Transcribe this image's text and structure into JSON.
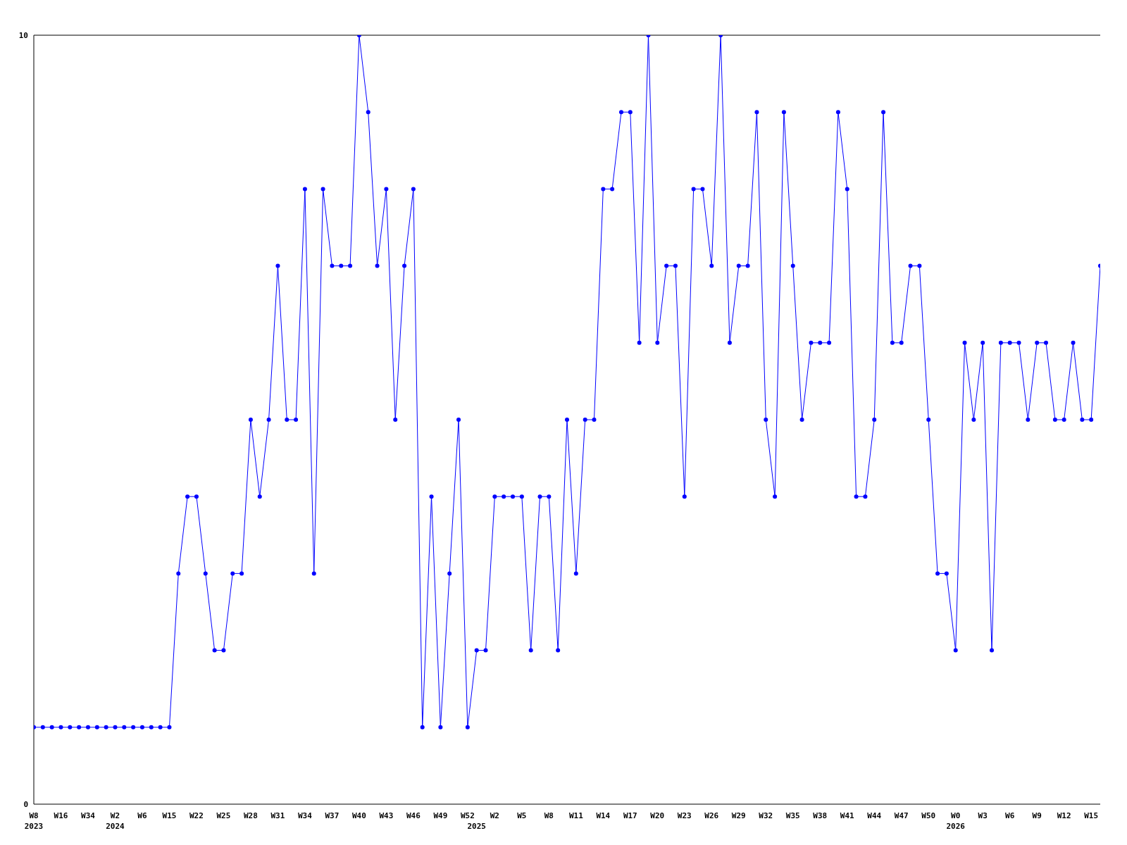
{
  "chart_data": {
    "type": "line",
    "categories": [
      "W8\n2023",
      null,
      null,
      "W16",
      null,
      null,
      "W34",
      null,
      null,
      "W2\n2024",
      null,
      null,
      "W6",
      null,
      null,
      "W15",
      null,
      null,
      "W22",
      null,
      null,
      "W25",
      null,
      null,
      "W28",
      null,
      null,
      "W31",
      null,
      null,
      "W34",
      null,
      null,
      "W37",
      null,
      null,
      "W40",
      null,
      null,
      "W43",
      null,
      null,
      "W46",
      null,
      null,
      "W49",
      null,
      null,
      "W52",
      "\n2025",
      null,
      "W2",
      null,
      null,
      "W5",
      null,
      null,
      "W8",
      null,
      null,
      "W11",
      null,
      null,
      "W14",
      null,
      null,
      "W17",
      null,
      null,
      "W20",
      null,
      null,
      "W23",
      null,
      null,
      "W26",
      null,
      null,
      "W29",
      null,
      null,
      "W32",
      null,
      null,
      "W35",
      null,
      null,
      "W38",
      null,
      null,
      "W41",
      null,
      null,
      "W44",
      null,
      null,
      "W47",
      null,
      null,
      "W50",
      null,
      null,
      "W0\n2026",
      null,
      null,
      "W3",
      null,
      null,
      "W6",
      null,
      null,
      "W9",
      null,
      null,
      "W12",
      null,
      null,
      "W15",
      null
    ],
    "series": [
      {
        "color": "#0000ff",
        "values": [
          1,
          1,
          1,
          1,
          1,
          1,
          1,
          1,
          1,
          1,
          1,
          1,
          1,
          1,
          1,
          1,
          3,
          4,
          4,
          3,
          2,
          2,
          3,
          3,
          5,
          4,
          5,
          7,
          5,
          5,
          8,
          3,
          8,
          7,
          7,
          7,
          10,
          9,
          7,
          8,
          5,
          7,
          8,
          1,
          4,
          1,
          3,
          5,
          1,
          2,
          2,
          4,
          4,
          4,
          4,
          2,
          4,
          4,
          2,
          5,
          3,
          5,
          5,
          8,
          8,
          9,
          9,
          6,
          10,
          6,
          7,
          7,
          4,
          8,
          8,
          7,
          10,
          6,
          7,
          7,
          9,
          5,
          4,
          9,
          7,
          5,
          6,
          6,
          6,
          9,
          8,
          4,
          4,
          5,
          9,
          6,
          6,
          7,
          7,
          5,
          3,
          3,
          2,
          6,
          5,
          6,
          2,
          6,
          6,
          6,
          5,
          6,
          6,
          5,
          5,
          6,
          5,
          5,
          7
        ]
      }
    ],
    "ylim": [
      0,
      10
    ],
    "yticks": [
      0,
      10
    ],
    "marker": "circle",
    "line_style": "solid"
  }
}
